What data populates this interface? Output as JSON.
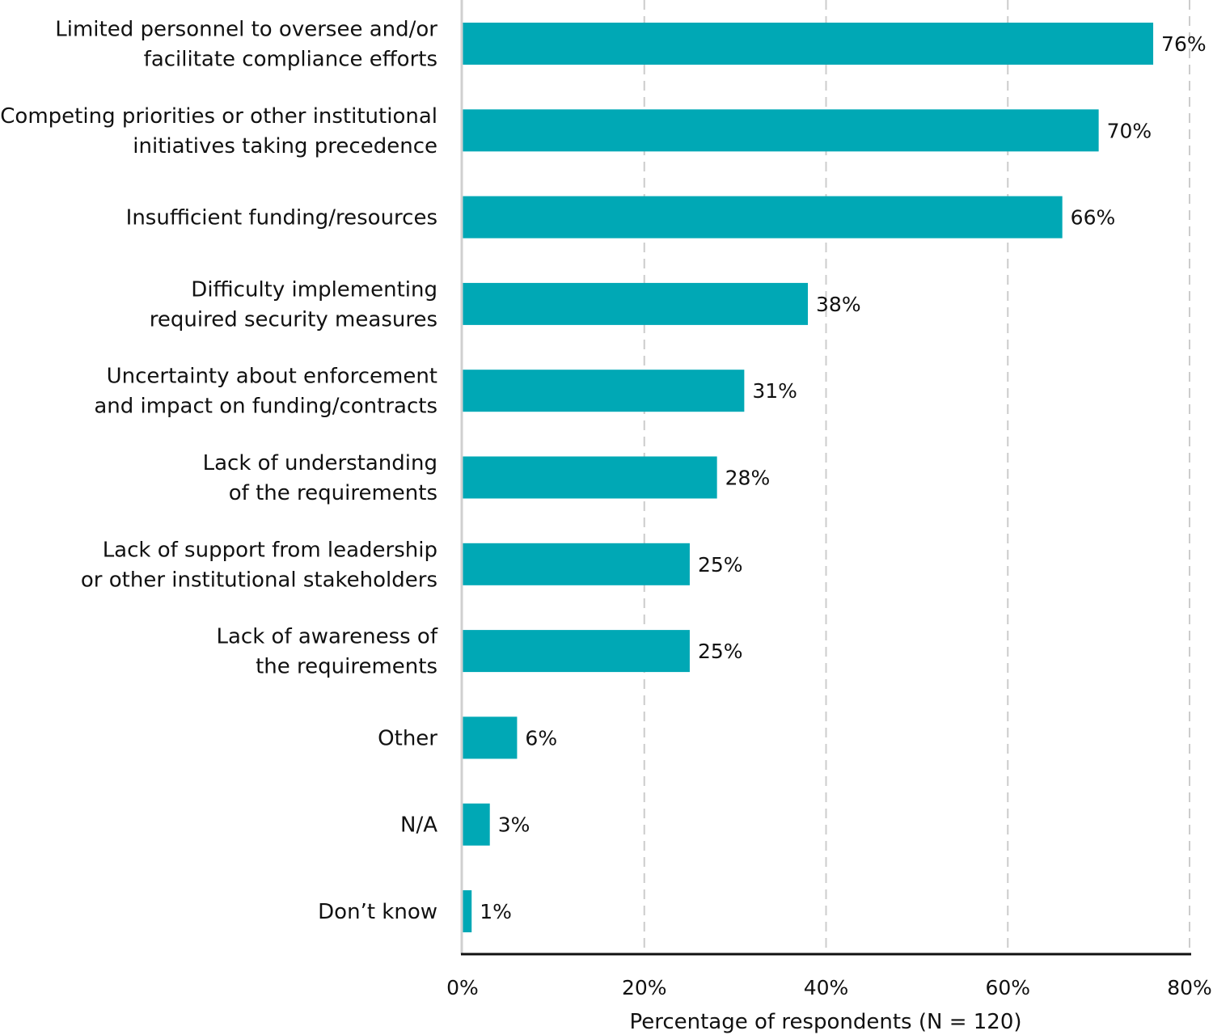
{
  "chart_data": {
    "type": "bar",
    "orientation": "horizontal",
    "categories": [
      [
        "Limited personnel to oversee and/or",
        "facilitate compliance efforts"
      ],
      [
        "Competing priorities or other institutional",
        "initiatives taking precedence"
      ],
      [
        "Insufficient funding/resources"
      ],
      [
        "Difficulty implementing",
        "required security measures"
      ],
      [
        "Uncertainty about enforcement",
        "and impact on funding/contracts"
      ],
      [
        "Lack of understanding",
        "of the requirements"
      ],
      [
        "Lack of support from leadership",
        "or other institutional stakeholders"
      ],
      [
        "Lack of awareness of",
        "the requirements"
      ],
      [
        "Other"
      ],
      [
        "N/A"
      ],
      [
        "Don’t know"
      ]
    ],
    "values": [
      76,
      70,
      66,
      38,
      31,
      28,
      25,
      25,
      6,
      3,
      1
    ],
    "value_labels": [
      "76%",
      "70%",
      "66%",
      "38%",
      "31%",
      "28%",
      "25%",
      "25%",
      "6%",
      "3%",
      "1%"
    ],
    "xlim": [
      0,
      80
    ],
    "xticks": [
      0,
      20,
      40,
      60,
      80
    ],
    "xtick_labels": [
      "0%",
      "20%",
      "40%",
      "60%",
      "80%"
    ],
    "xlabel": "Percentage of respondents (N = 120)",
    "ylabel": "",
    "title": "",
    "grid": "vertical-dashed",
    "bar_color": "#00a8b5",
    "axis_color": "#111111",
    "grid_color": "#cccccc"
  }
}
